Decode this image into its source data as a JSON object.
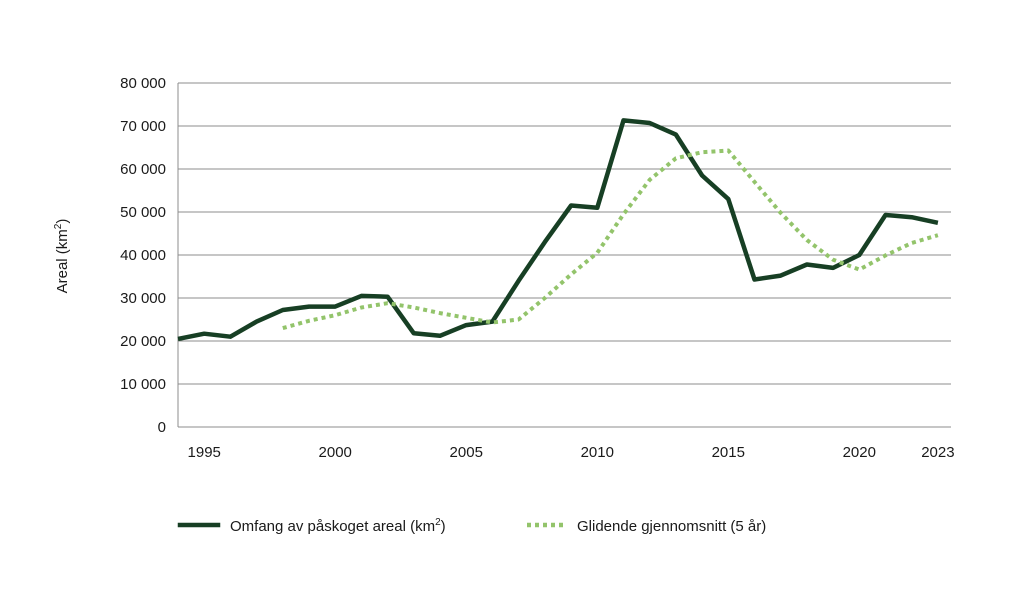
{
  "chart_data": {
    "type": "line",
    "title": "",
    "xlabel": "",
    "ylabel": "Areal (km²)",
    "ylabel_text": "Areal (km",
    "ylabel_sup": "2",
    "ylabel_close": ")",
    "ylim": [
      0,
      80000
    ],
    "xlim": [
      1994,
      2023.5
    ],
    "grid": true,
    "y_ticks": [
      {
        "value": 0,
        "label": "0"
      },
      {
        "value": 10000,
        "label": "10 000"
      },
      {
        "value": 20000,
        "label": "20 000"
      },
      {
        "value": 30000,
        "label": "30 000"
      },
      {
        "value": 40000,
        "label": "40 000"
      },
      {
        "value": 50000,
        "label": "50 000"
      },
      {
        "value": 60000,
        "label": "60 000"
      },
      {
        "value": 70000,
        "label": "70 000"
      },
      {
        "value": 80000,
        "label": "80 000"
      }
    ],
    "x_ticks": [
      {
        "value": 1995,
        "label": "1995"
      },
      {
        "value": 2000,
        "label": "2000"
      },
      {
        "value": 2005,
        "label": "2005"
      },
      {
        "value": 2010,
        "label": "2010"
      },
      {
        "value": 2015,
        "label": "2015"
      },
      {
        "value": 2020,
        "label": "2020"
      },
      {
        "value": 2023,
        "label": "2023"
      }
    ],
    "series": [
      {
        "name": "Omfang av påskoget areal  (km²)",
        "legend_text": "Omfang av påskoget areal  (km",
        "legend_sup": "2",
        "legend_close": ")",
        "color": "#173f24",
        "style": "solid",
        "x": [
          1994,
          1995,
          1996,
          1997,
          1998,
          1999,
          2000,
          2001,
          2002,
          2003,
          2004,
          2005,
          2006,
          2007,
          2008,
          2009,
          2010,
          2011,
          2012,
          2013,
          2014,
          2015,
          2016,
          2017,
          2018,
          2019,
          2020,
          2021,
          2022,
          2023
        ],
        "values": [
          20500,
          21700,
          21000,
          24500,
          27200,
          28000,
          28000,
          30500,
          30300,
          21800,
          21200,
          23700,
          24500,
          34000,
          43000,
          51500,
          51000,
          71300,
          70700,
          68000,
          58500,
          53000,
          34300,
          35200,
          37800,
          37000,
          40000,
          49300,
          48800,
          47500
        ]
      },
      {
        "name": "Glidende gjennomsnitt (5 år)",
        "legend_text": "Glidende gjennomsnitt (5 år)",
        "color": "#93c46b",
        "style": "dotted",
        "x": [
          1998,
          1999,
          2000,
          2001,
          2002,
          2003,
          2004,
          2005,
          2006,
          2007,
          2008,
          2009,
          2010,
          2011,
          2012,
          2013,
          2014,
          2015,
          2016,
          2017,
          2018,
          2019,
          2020,
          2021,
          2022,
          2023
        ],
        "values": [
          23000,
          24700,
          26000,
          27800,
          28800,
          27800,
          26500,
          25400,
          24300,
          25000,
          30000,
          35500,
          40500,
          49500,
          57500,
          62500,
          63900,
          64300,
          57000,
          49800,
          43500,
          38900,
          36600,
          39900,
          42800,
          44600
        ]
      }
    ]
  }
}
